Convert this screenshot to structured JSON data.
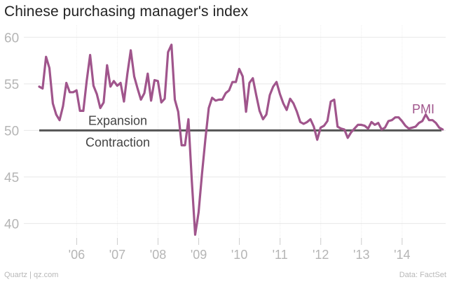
{
  "chart_data": {
    "type": "line",
    "title": "Chinese purchasing manager's index",
    "xlabel": "",
    "ylabel": "",
    "ylim": [
      38,
      61
    ],
    "y_ticks": [
      40,
      45,
      50,
      55,
      60
    ],
    "x_ticks": [
      "'06",
      "'07",
      "'08",
      "'09",
      "'10",
      "'11",
      "'12",
      "'13",
      "'14"
    ],
    "x_tick_years": [
      2006,
      2007,
      2008,
      2009,
      2010,
      2011,
      2012,
      2013,
      2014
    ],
    "x_start": 2005.08,
    "x_step": 0.0833333,
    "grid": true,
    "series": [
      {
        "name": "PMI",
        "color": "#a0558c",
        "values": [
          54.7,
          54.5,
          57.9,
          56.7,
          52.9,
          51.7,
          51.1,
          52.6,
          55.1,
          54.1,
          54.1,
          54.3,
          52.1,
          52.1,
          55.3,
          58.1,
          54.8,
          53.9,
          52.4,
          53.0,
          57.0,
          54.7,
          55.3,
          54.8,
          55.1,
          53.1,
          56.1,
          58.6,
          55.8,
          54.5,
          53.3,
          54.0,
          56.1,
          53.2,
          55.4,
          55.3,
          53.0,
          53.4,
          58.4,
          59.2,
          53.3,
          52.0,
          48.4,
          48.4,
          51.2,
          44.6,
          38.8,
          41.2,
          45.3,
          49.0,
          52.4,
          53.5,
          53.2,
          53.3,
          53.3,
          54.0,
          54.3,
          55.2,
          55.2,
          56.6,
          55.8,
          52.0,
          55.1,
          55.6,
          53.8,
          52.1,
          51.2,
          51.7,
          53.8,
          54.7,
          55.2,
          53.9,
          52.9,
          52.2,
          53.4,
          52.9,
          52.0,
          50.9,
          50.7,
          50.9,
          51.2,
          50.4,
          49.0,
          50.3,
          50.5,
          51.0,
          53.1,
          53.3,
          50.4,
          50.2,
          50.1,
          49.2,
          49.8,
          50.2,
          50.6,
          50.6,
          50.5,
          50.2,
          50.9,
          50.6,
          50.8,
          50.1,
          50.3,
          51.0,
          51.1,
          51.4,
          51.4,
          51.0,
          50.5,
          50.2,
          50.3,
          50.4,
          50.8,
          51.0,
          51.7,
          51.1,
          51.1,
          50.8,
          50.3,
          50.1
        ]
      }
    ],
    "reference_line": {
      "value": 50,
      "label_above": "Expansion",
      "label_below": "Contraction",
      "color": "#555555"
    },
    "annotations": [
      {
        "text": "PMI",
        "series": "PMI"
      }
    ]
  },
  "footer": {
    "source_left": "Quartz | qz.com",
    "source_right": "Data: FactSet"
  }
}
